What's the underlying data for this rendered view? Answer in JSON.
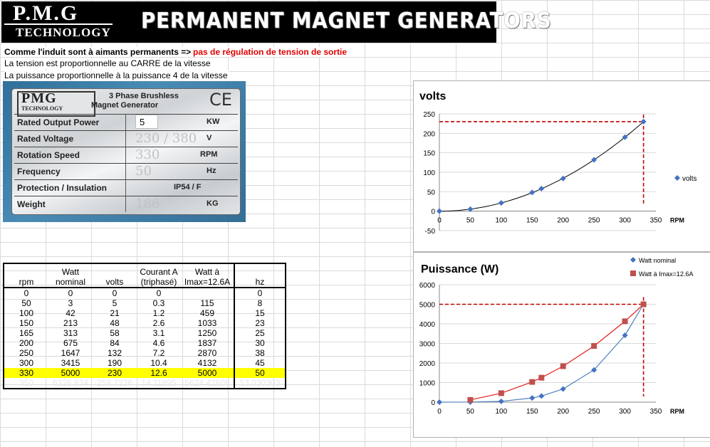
{
  "banner": {
    "logo_line1": "P.M.G",
    "logo_line2": "TECHNOLOGY",
    "title": "PERMANENT MAGNET GENERATORS"
  },
  "notes": {
    "line1": "Comme l'induit sont à aimants permanents =>",
    "line1_red": "pas de régulation de tension de sortie",
    "line2": "La tension est proportionnelle au CARRE de la vitesse",
    "line3": "La puissance proportionnelle à la puissance 4 de la vitesse"
  },
  "nameplate": {
    "brand": "PMG",
    "brand_sub": "TECHNOLOGY",
    "desc_line1": "3 Phase Brushless",
    "desc_line2": "Magnet Generator",
    "ce_mark": "CE",
    "power_input_value": "5",
    "rows": [
      {
        "label": "Rated Output Power",
        "value": "",
        "unit": "KW"
      },
      {
        "label": "Rated Voltage",
        "value": "230 / 380",
        "unit": "V"
      },
      {
        "label": "Rotation Speed",
        "value": "330",
        "unit": "RPM"
      },
      {
        "label": "Frequency",
        "value": "50",
        "unit": "Hz"
      },
      {
        "label": "Protection / Insulation",
        "value": "IP54  /  F",
        "unit": ""
      },
      {
        "label": "Weight",
        "value": "186",
        "unit": "KG"
      }
    ]
  },
  "table": {
    "headers": [
      [
        "",
        "rpm"
      ],
      [
        "Watt",
        "nominal"
      ],
      [
        "",
        "volts"
      ],
      [
        "Courant A",
        "(triphasé)"
      ],
      [
        "Watt à",
        "Imax=12.6A"
      ],
      [
        "",
        "hz"
      ]
    ],
    "rows": [
      [
        "0",
        "0",
        "0",
        "0",
        "",
        "0"
      ],
      [
        "50",
        "3",
        "5",
        "0.3",
        "115",
        "8"
      ],
      [
        "100",
        "42",
        "21",
        "1.2",
        "459",
        "15"
      ],
      [
        "150",
        "213",
        "48",
        "2.6",
        "1033",
        "23"
      ],
      [
        "165",
        "313",
        "58",
        "3.1",
        "1250",
        "25"
      ],
      [
        "200",
        "675",
        "84",
        "4.6",
        "1837",
        "30"
      ],
      [
        "250",
        "1647",
        "132",
        "7.2",
        "2870",
        "38"
      ],
      [
        "300",
        "3415",
        "190",
        "10.4",
        "4132",
        "45"
      ],
      [
        "330",
        "5000",
        "230",
        "12.6",
        "5000",
        "50"
      ],
      [
        "350",
        "6326.834",
        "258.7236",
        "14.11895",
        "5624.42608",
        "53.030303"
      ]
    ],
    "highlight_color": "#ffff00"
  },
  "chart_data": [
    {
      "type": "scatter",
      "title": "volts",
      "xlabel": "RPM",
      "ylabel": "",
      "xlim": [
        0,
        350
      ],
      "ylim": [
        -50,
        250
      ],
      "xticks": [
        "0",
        "50",
        "100",
        "150",
        "200",
        "250",
        "300",
        "350"
      ],
      "yticks": [
        "-50",
        "0",
        "50",
        "100",
        "150",
        "200",
        "250"
      ],
      "legend": "right",
      "series": [
        {
          "name": "volts",
          "color": "#4472c4",
          "marker": "diamond",
          "x": [
            0,
            50,
            100,
            150,
            165,
            200,
            250,
            300,
            330
          ],
          "y": [
            0,
            5,
            21,
            48,
            58,
            84,
            132,
            190,
            230
          ]
        }
      ],
      "trendline": {
        "color": "#000000",
        "type": "poly2"
      },
      "guide": {
        "x": 330,
        "y": 230,
        "color": "#c00000",
        "style": "dashed"
      },
      "grid": true
    },
    {
      "type": "scatter",
      "title": "Puissance (W)",
      "xlabel": "RPM",
      "ylabel": "",
      "xlim": [
        0,
        350
      ],
      "ylim": [
        0,
        6000
      ],
      "xticks": [
        "0",
        "50",
        "100",
        "150",
        "200",
        "250",
        "300",
        "350"
      ],
      "yticks": [
        "0",
        "1000",
        "2000",
        "3000",
        "4000",
        "5000",
        "6000"
      ],
      "legend": "top-right",
      "series": [
        {
          "name": "Watt nominal",
          "color": "#4472c4",
          "marker": "diamond",
          "line_color": "#4f81bd",
          "x": [
            0,
            50,
            100,
            150,
            165,
            200,
            250,
            300,
            330
          ],
          "y": [
            0,
            3,
            42,
            213,
            313,
            675,
            1647,
            3415,
            5000
          ]
        },
        {
          "name": "Watt à Imax=12.6A",
          "color": "#c0504d",
          "marker": "square",
          "line_color": "#e0201a",
          "x": [
            50,
            100,
            150,
            165,
            200,
            250,
            300,
            330
          ],
          "y": [
            115,
            459,
            1033,
            1250,
            1837,
            2870,
            4132,
            5000
          ]
        }
      ],
      "guide": {
        "x": 330,
        "y": 5000,
        "color": "#c00000",
        "style": "dashed"
      },
      "grid": true
    }
  ]
}
